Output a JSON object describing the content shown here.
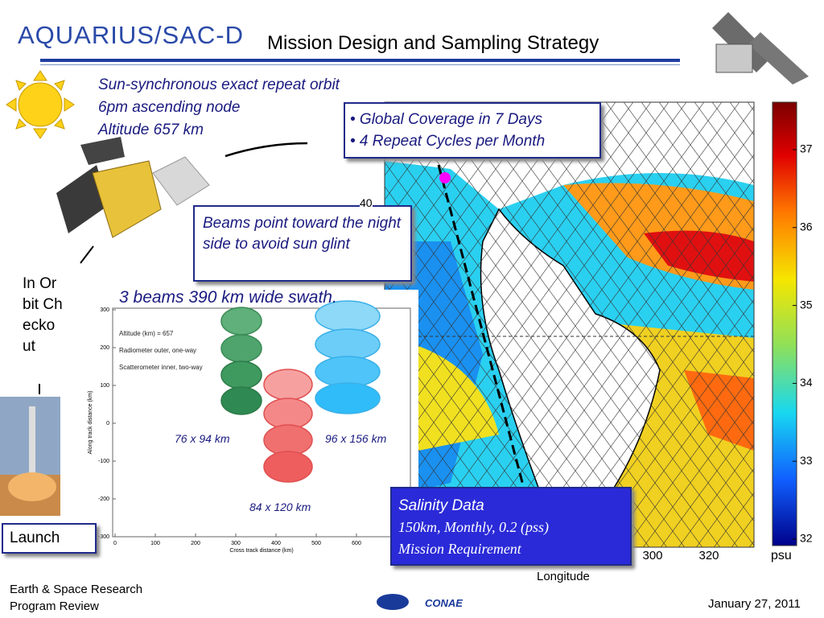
{
  "header": {
    "logo": "AQUARIUS/SAC-D",
    "title": "Mission Design and Sampling Strategy"
  },
  "orbit": [
    "Sun-synchronous exact repeat orbit",
    "6pm ascending node",
    "Altitude 657 km"
  ],
  "coverage": [
    "• Global Coverage in 7 Days",
    "• 4 Repeat Cycles per Month"
  ],
  "beams_note": "Beams point toward the night side to avoid sun glint",
  "timeline": {
    "checkout": "In Orbit Checkout",
    "launch": "Launch"
  },
  "swath": {
    "title": "3 beams 390 km wide swath.",
    "legend": [
      "Altitude (km) = 657",
      "Radiometer outer, one-way",
      "Scatterometer inner, two-way"
    ],
    "footprints": [
      "76 x 94 km",
      "96 x 156 km",
      "84 x 120 km"
    ],
    "x_label": "Cross track distance (km)",
    "y_label": "Along track distance (km)",
    "xticks": [
      0,
      100,
      200,
      300,
      400,
      500,
      600
    ],
    "yticks": [
      300,
      200,
      100,
      0,
      -100,
      -200,
      -300
    ]
  },
  "map": {
    "lat_label": "40",
    "xticks": [
      300,
      320
    ],
    "x_label": "Longitude",
    "colorbar_ticks": [
      37,
      36,
      35,
      34,
      33,
      32
    ],
    "unit": "psu"
  },
  "salinity": {
    "title": "Salinity Data",
    "detail": "150km, Monthly, 0.2 (pss)",
    "requirement": "Mission Requirement"
  },
  "footer": {
    "org": [
      "Earth & Space Research",
      "Program Review"
    ],
    "date": "January 27, 2011",
    "logo": "CONAE"
  }
}
